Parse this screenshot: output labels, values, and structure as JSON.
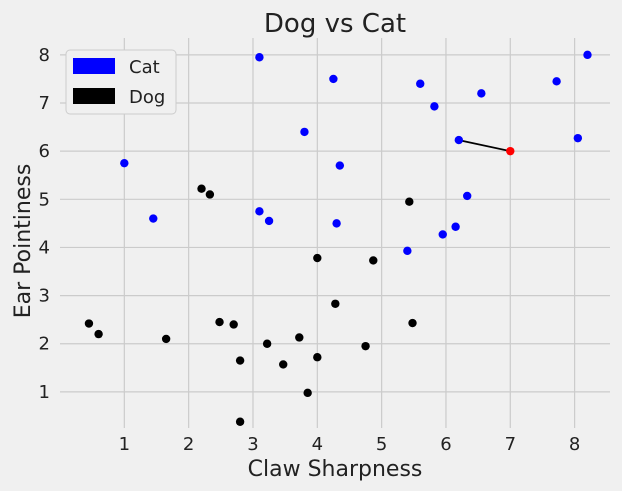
{
  "chart_data": {
    "type": "scatter",
    "title": "Dog vs Cat",
    "xlabel": "Claw Sharpness",
    "ylabel": "Ear Pointiness",
    "xlim": [
      0.0,
      8.55
    ],
    "ylim": [
      0.25,
      8.35
    ],
    "xticks": [
      1,
      2,
      3,
      4,
      5,
      6,
      7,
      8
    ],
    "yticks": [
      1,
      2,
      3,
      4,
      5,
      6,
      7,
      8
    ],
    "grid": true,
    "legend_position": "top-left",
    "series": [
      {
        "name": "Cat",
        "color": "#0000ff",
        "points": [
          [
            1.0,
            5.75
          ],
          [
            1.45,
            4.6
          ],
          [
            3.1,
            7.95
          ],
          [
            3.1,
            4.75
          ],
          [
            3.25,
            4.55
          ],
          [
            3.8,
            6.4
          ],
          [
            4.25,
            7.5
          ],
          [
            4.3,
            4.5
          ],
          [
            4.35,
            5.7
          ],
          [
            5.4,
            3.93
          ],
          [
            5.6,
            7.4
          ],
          [
            5.82,
            6.93
          ],
          [
            5.95,
            4.27
          ],
          [
            6.15,
            4.43
          ],
          [
            6.2,
            6.23
          ],
          [
            6.33,
            5.07
          ],
          [
            6.55,
            7.2
          ],
          [
            7.72,
            7.45
          ],
          [
            8.05,
            6.27
          ],
          [
            8.2,
            8.0
          ]
        ]
      },
      {
        "name": "Dog",
        "color": "#000000",
        "points": [
          [
            0.45,
            2.42
          ],
          [
            0.6,
            2.2
          ],
          [
            1.65,
            2.1
          ],
          [
            2.2,
            5.22
          ],
          [
            2.33,
            5.1
          ],
          [
            2.48,
            2.45
          ],
          [
            2.7,
            2.4
          ],
          [
            2.8,
            1.65
          ],
          [
            2.8,
            0.38
          ],
          [
            3.22,
            2.0
          ],
          [
            3.47,
            1.57
          ],
          [
            3.72,
            2.13
          ],
          [
            3.85,
            0.98
          ],
          [
            4.0,
            3.78
          ],
          [
            4.0,
            1.72
          ],
          [
            4.28,
            2.83
          ],
          [
            4.75,
            1.95
          ],
          [
            4.87,
            3.73
          ],
          [
            5.43,
            4.95
          ],
          [
            5.48,
            2.43
          ]
        ]
      }
    ],
    "query_point": {
      "x": 7.0,
      "y": 6.0,
      "color": "#ff0000"
    },
    "nearest_line": {
      "from": [
        7.0,
        6.0
      ],
      "to": [
        6.2,
        6.23
      ],
      "color": "#000000"
    },
    "legend": [
      {
        "label": "Cat",
        "color": "#0000ff"
      },
      {
        "label": "Dog",
        "color": "#000000"
      }
    ]
  }
}
